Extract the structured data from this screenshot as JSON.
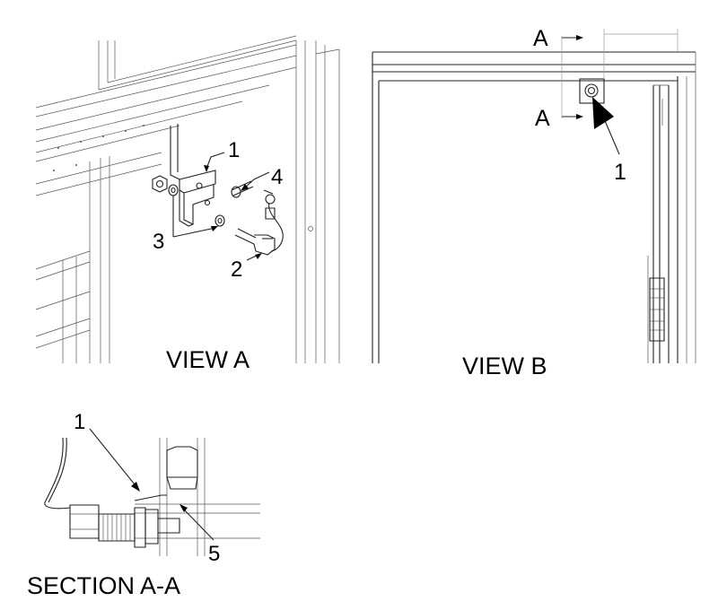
{
  "view_a": {
    "title": "VIEW A",
    "callouts": [
      "1",
      "2",
      "3",
      "4"
    ]
  },
  "view_b": {
    "title": "VIEW B",
    "section_mark_top": "A",
    "section_mark_bottom": "A",
    "callout": "1"
  },
  "section_aa": {
    "title": "SECTION A-A",
    "callouts": [
      "1",
      "5"
    ]
  },
  "colors": {
    "line": "#000000",
    "background": "#ffffff"
  }
}
